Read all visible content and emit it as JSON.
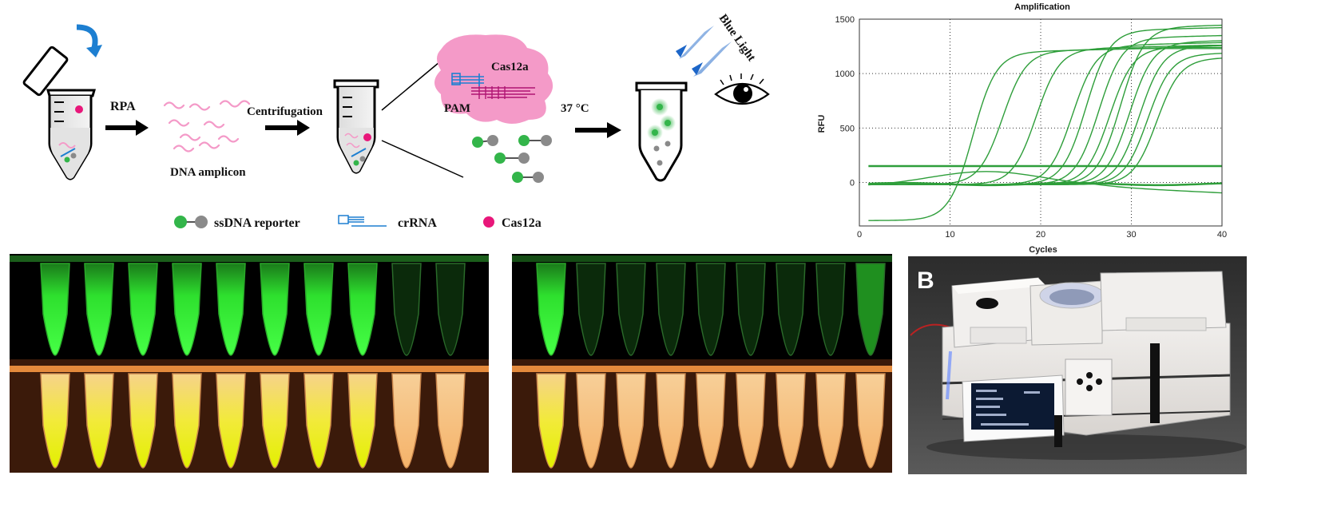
{
  "schematic": {
    "step1_label": "RPA",
    "amplicon_label": "DNA amplicon",
    "step2_label": "Centrifugation",
    "cas_label": "Cas12a",
    "pam_label": "PAM",
    "temp_label": "37 °C",
    "light_label": "Blue Light",
    "legend": {
      "reporter": "ssDNA reporter",
      "crrna": "crRNA",
      "cas": "Cas12a"
    }
  },
  "colors": {
    "green": "#33b54a",
    "gray": "#8a8a8a",
    "pink": "#e8177a",
    "blue": "#1d7fd1",
    "pink_light": "#f49ac8",
    "curve": "#2e9e3a"
  },
  "photo_label": "B",
  "chart_data": {
    "type": "line",
    "title": "Amplification",
    "xlabel": "Cycles",
    "ylabel": "RFU",
    "xlim": [
      0,
      40
    ],
    "ylim": [
      -400,
      1500
    ],
    "xticks": [
      0,
      10,
      20,
      30,
      40
    ],
    "yticks": [
      0,
      500,
      1000,
      1500
    ],
    "grid": true,
    "threshold": 150,
    "baseline": -15,
    "curves": [
      {
        "mid": 12.5,
        "plateau": 1200,
        "start": -350
      },
      {
        "mid": 15.8,
        "plateau": 1210
      },
      {
        "mid": 19.5,
        "plateau": 1230
      },
      {
        "mid": 23.5,
        "plateau": 1260
      },
      {
        "mid": 25.0,
        "plateau": 1400
      },
      {
        "mid": 26.4,
        "plateau": 1330
      },
      {
        "mid": 27.6,
        "plateau": 1240
      },
      {
        "mid": 28.8,
        "plateau": 1430
      },
      {
        "mid": 29.8,
        "plateau": 1290
      },
      {
        "mid": 30.9,
        "plateau": 1250
      },
      {
        "mid": 31.8,
        "plateau": 1180
      },
      {
        "mid": 32.8,
        "plateau": 1140
      }
    ]
  }
}
